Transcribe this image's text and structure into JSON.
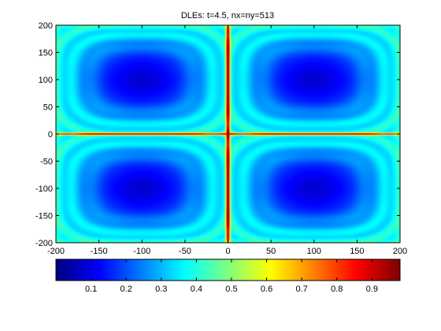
{
  "chart_data": {
    "type": "heatmap",
    "title": "DLEs: t=4.5, nx=ny=513",
    "xlabel": "",
    "ylabel": "",
    "xlim": [
      -200,
      200
    ],
    "ylim": [
      -200,
      200
    ],
    "xticks": [
      -200,
      -150,
      -100,
      -50,
      0,
      50,
      100,
      150,
      200
    ],
    "yticks": [
      -200,
      -150,
      -100,
      -50,
      0,
      50,
      100,
      150,
      200
    ],
    "grid": false,
    "colormap": "jet",
    "colorbar": {
      "orientation": "horizontal",
      "placement": "bottom",
      "range": [
        0.0,
        0.98
      ],
      "ticks": [
        0.1,
        0.2,
        0.3,
        0.4,
        0.5,
        0.6,
        0.7,
        0.8,
        0.9
      ]
    },
    "field_structure": {
      "description": "four counter-rotating cells separated by ridges",
      "cell_centers": [
        [
          -100,
          100
        ],
        [
          100,
          100
        ],
        [
          -100,
          -100
        ],
        [
          100,
          -100
        ]
      ],
      "cell_center_value": 0.08,
      "cell_ring_value": 0.38,
      "ridge_lines": {
        "x": [
          0
        ],
        "y": [
          0
        ]
      },
      "ridge_value": 0.95,
      "boundary_edge_value": 0.45
    }
  }
}
